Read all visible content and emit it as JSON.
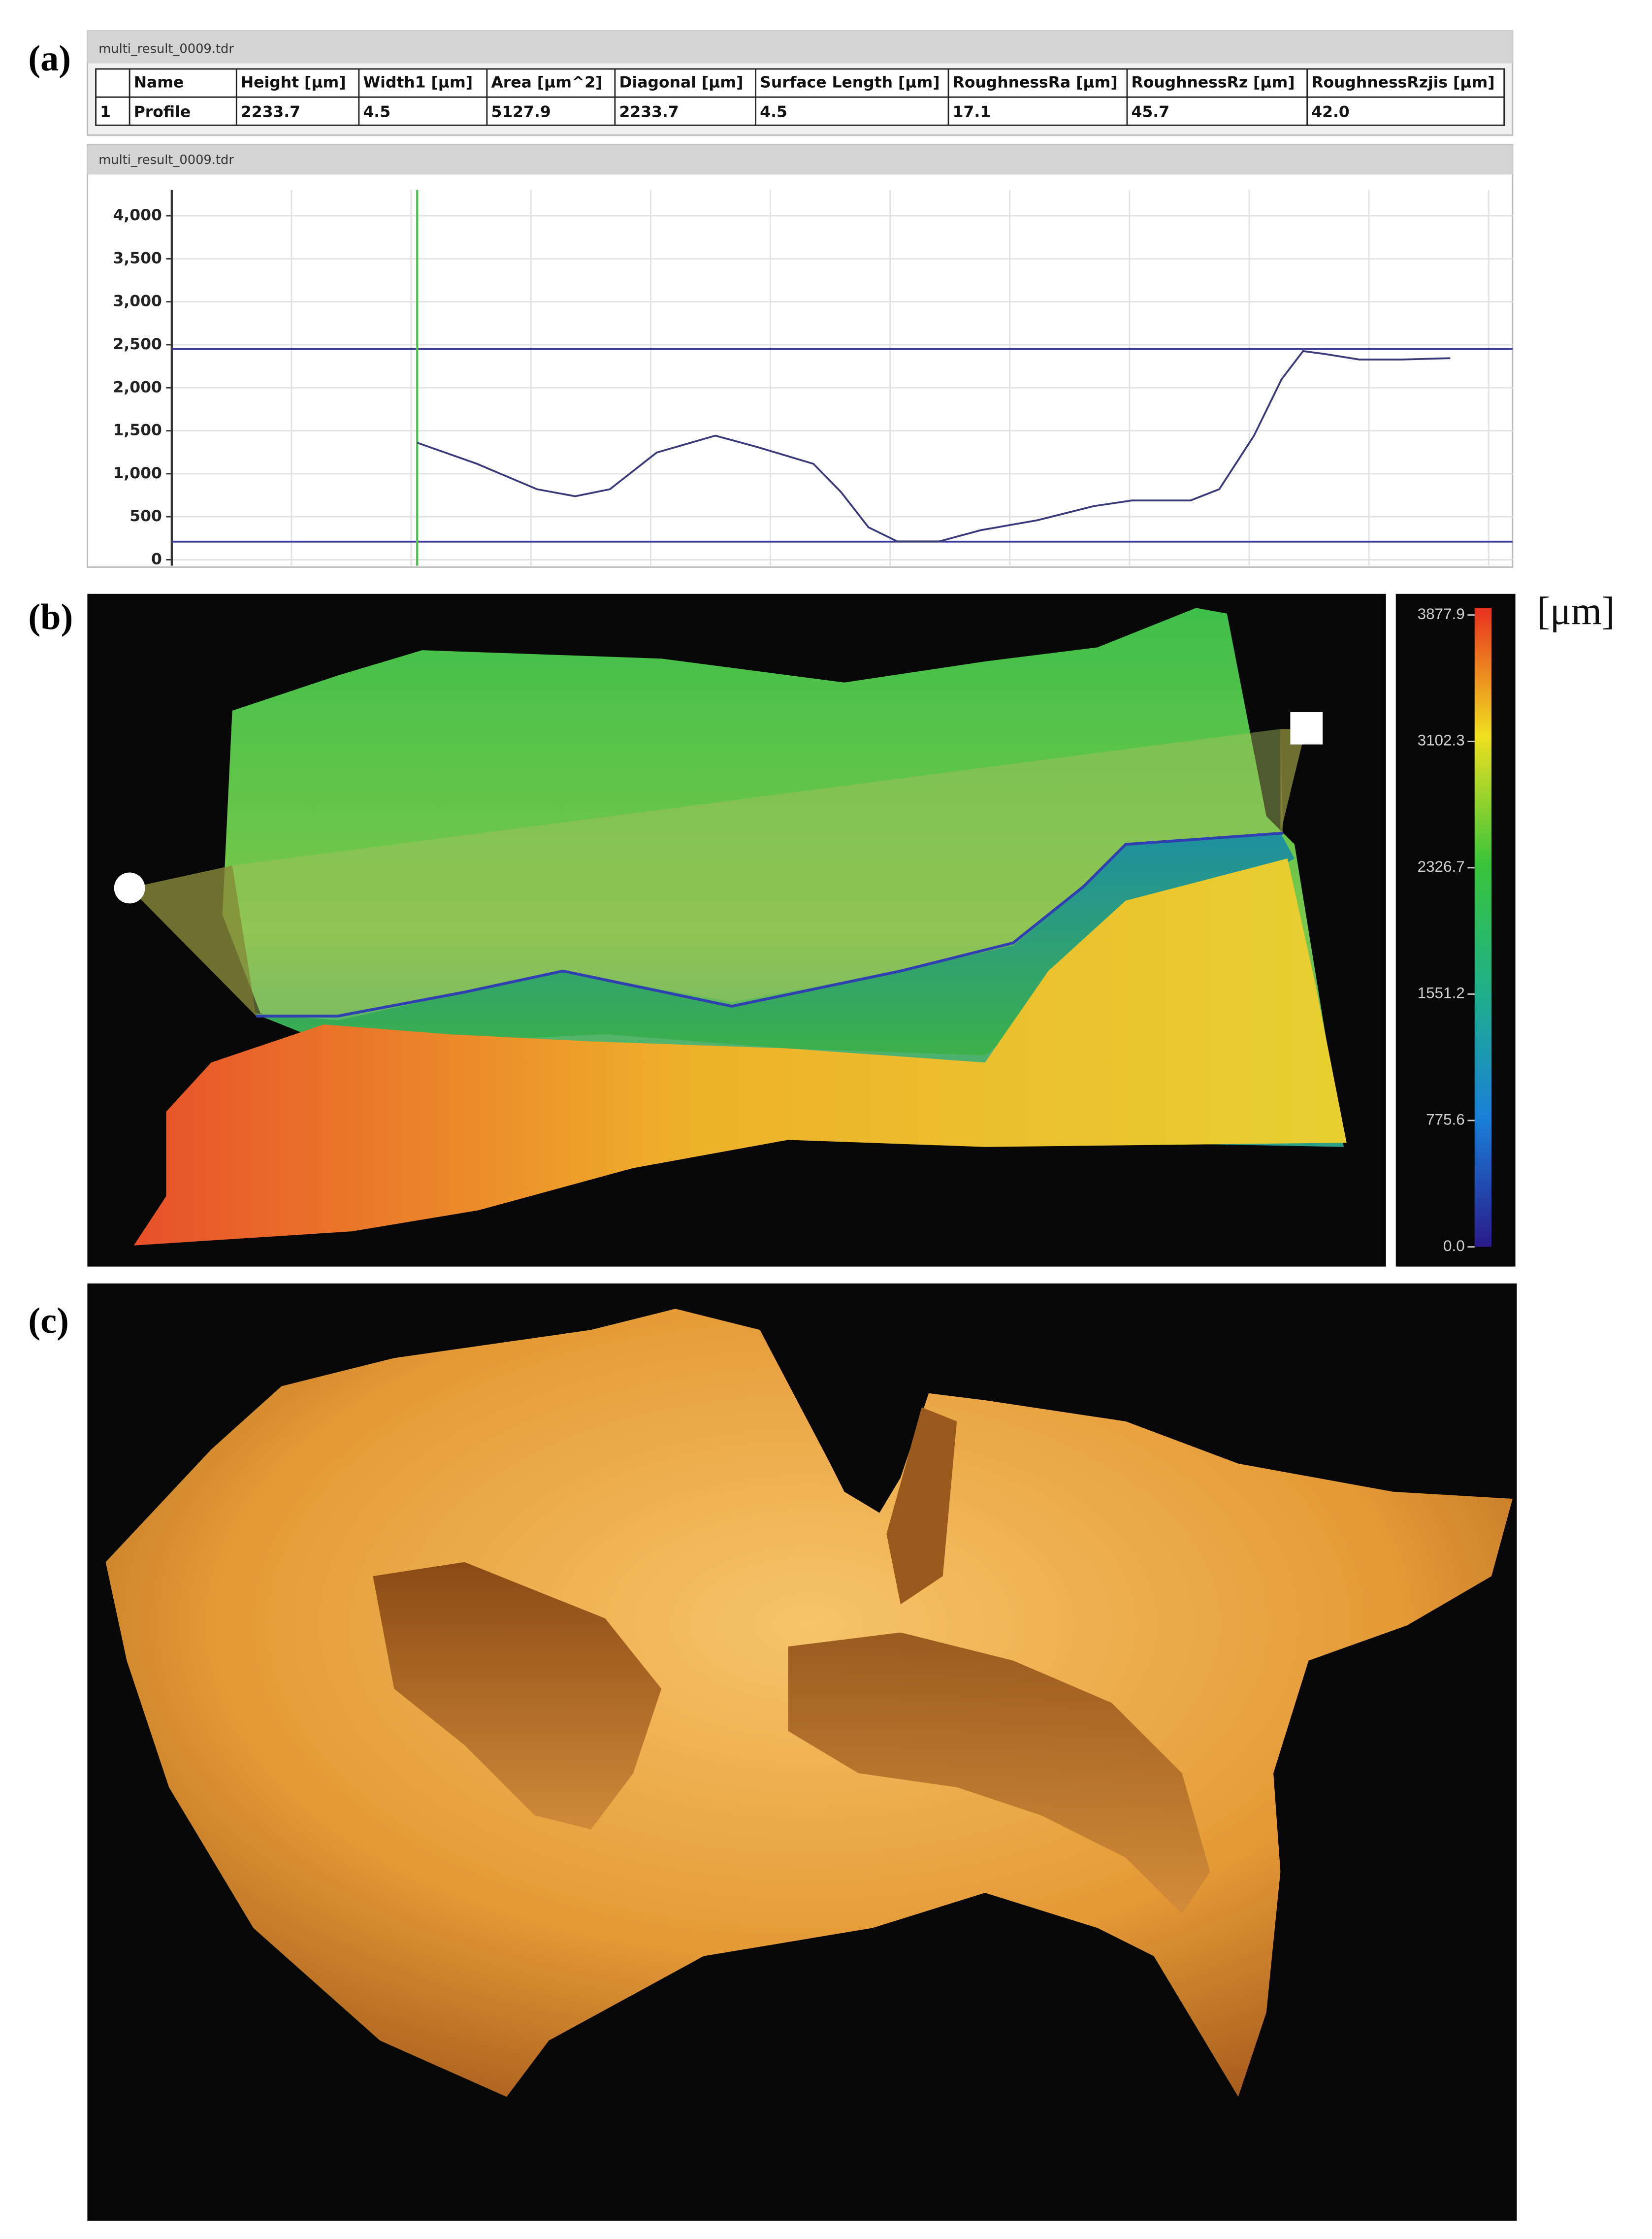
{
  "panel_labels": [
    "(a)",
    "(b)",
    "(c)"
  ],
  "panel_a": {
    "window_title": "multi_result_0009.tdr",
    "table": {
      "header": [
        "Name",
        "Height [μm]",
        "Width1 [μm]",
        "Area [μm^2]",
        "Diagonal [μm]",
        "Surface Length [μm]",
        "RoughnessRa [μm]",
        "RoughnessRz [μm]",
        "RoughnessRzjis [μm]"
      ],
      "rows": [
        [
          "1",
          "Profile",
          "2233.7",
          "4.5",
          "5127.9",
          "2233.7",
          "4.5",
          "17.1",
          "45.7",
          "42.0"
        ]
      ]
    }
  },
  "chart_data": {
    "type": "line",
    "title": "multi_result_0009.tdr",
    "x": [
      2.05,
      2.55,
      3.05,
      3.37,
      3.66,
      4.05,
      4.54,
      4.89,
      5.36,
      5.59,
      5.82,
      6.06,
      6.41,
      6.76,
      7.23,
      7.7,
      8.02,
      8.51,
      8.75,
      9.04,
      9.27,
      9.45,
      9.63,
      9.92,
      10.27,
      10.68
    ],
    "values": [
      1361,
      1115,
      820,
      738,
      820,
      1246,
      1443,
      1311,
      1115,
      787,
      377,
      213,
      213,
      344,
      459,
      623,
      689,
      689,
      820,
      1443,
      2098,
      2426,
      2393,
      2328,
      2328,
      2344
    ],
    "color": "#3a3a7a",
    "xlim": [
      0,
      11.2
    ],
    "ylim": [
      -70,
      4300
    ],
    "yticks": [
      0,
      500,
      {
        "value": 1000,
        "label": "1,000"
      },
      {
        "value": 1500,
        "label": "1,500"
      },
      {
        "value": 2000,
        "label": "2,000"
      },
      {
        "value": 2500,
        "label": "2,500"
      },
      {
        "value": 3000,
        "label": "3,000"
      },
      {
        "value": 3500,
        "label": "3,500"
      },
      {
        "value": 4000,
        "label": "4,000"
      }
    ],
    "grid": true,
    "hlines": [
      2450,
      210
    ],
    "hline_color": "#3b3b9a",
    "vline_x": 2.05,
    "vline_color": "#4cc24c"
  },
  "panel_b": {
    "colorbar": {
      "lim": [
        0,
        3877.9
      ],
      "ticks": [
        3877.9,
        3102.3,
        2326.7,
        1551.2,
        775.6,
        {
          "value": 0,
          "label": "0.0"
        }
      ]
    },
    "unit": "[μm]"
  }
}
